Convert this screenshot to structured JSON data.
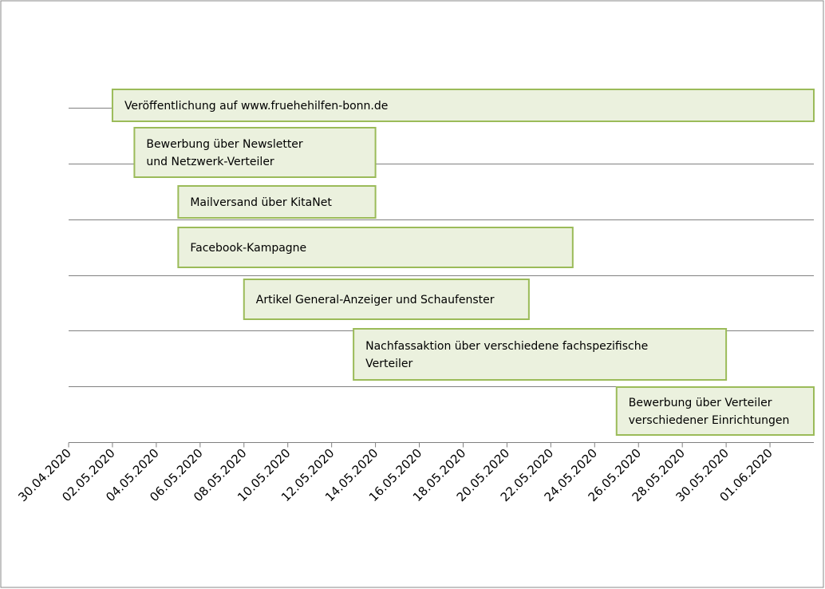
{
  "chart_data": {
    "type": "gantt",
    "xlim": [
      "30.04.2020",
      "03.06.2020"
    ],
    "xticks": [
      "30.04.2020",
      "02.05.2020",
      "04.05.2020",
      "06.05.2020",
      "08.05.2020",
      "10.05.2020",
      "12.05.2020",
      "14.05.2020",
      "16.05.2020",
      "18.05.2020",
      "20.05.2020",
      "22.05.2020",
      "24.05.2020",
      "26.05.2020",
      "28.05.2020",
      "30.05.2020",
      "01.06.2020"
    ],
    "color": "#ebf1de",
    "edge_color": "#9bbb59",
    "tasks": [
      {
        "label": [
          "Veröffentlichung auf www.fruehehilfen-bonn.de"
        ],
        "start": "02.05.2020",
        "end": "03.06.2020"
      },
      {
        "label": [
          "Bewerbung über Newsletter",
          "und Netzwerk-Verteiler"
        ],
        "start": "03.05.2020",
        "end": "14.05.2020"
      },
      {
        "label": [
          "Mailversand über KitaNet"
        ],
        "start": "05.05.2020",
        "end": "14.05.2020"
      },
      {
        "label": [
          "Facebook-Kampagne"
        ],
        "start": "05.05.2020",
        "end": "23.05.2020"
      },
      {
        "label": [
          "Artikel General-Anzeiger und Schaufenster"
        ],
        "start": "08.05.2020",
        "end": "21.05.2020"
      },
      {
        "label": [
          "Nachfassaktion über verschiedene fachspezifische",
          "Verteiler"
        ],
        "start": "13.05.2020",
        "end": "30.05.2020"
      },
      {
        "label": [
          "Bewerbung über Verteiler",
          "verschiedener Einrichtungen"
        ],
        "start": "25.05.2020",
        "end": "03.06.2020"
      }
    ]
  }
}
